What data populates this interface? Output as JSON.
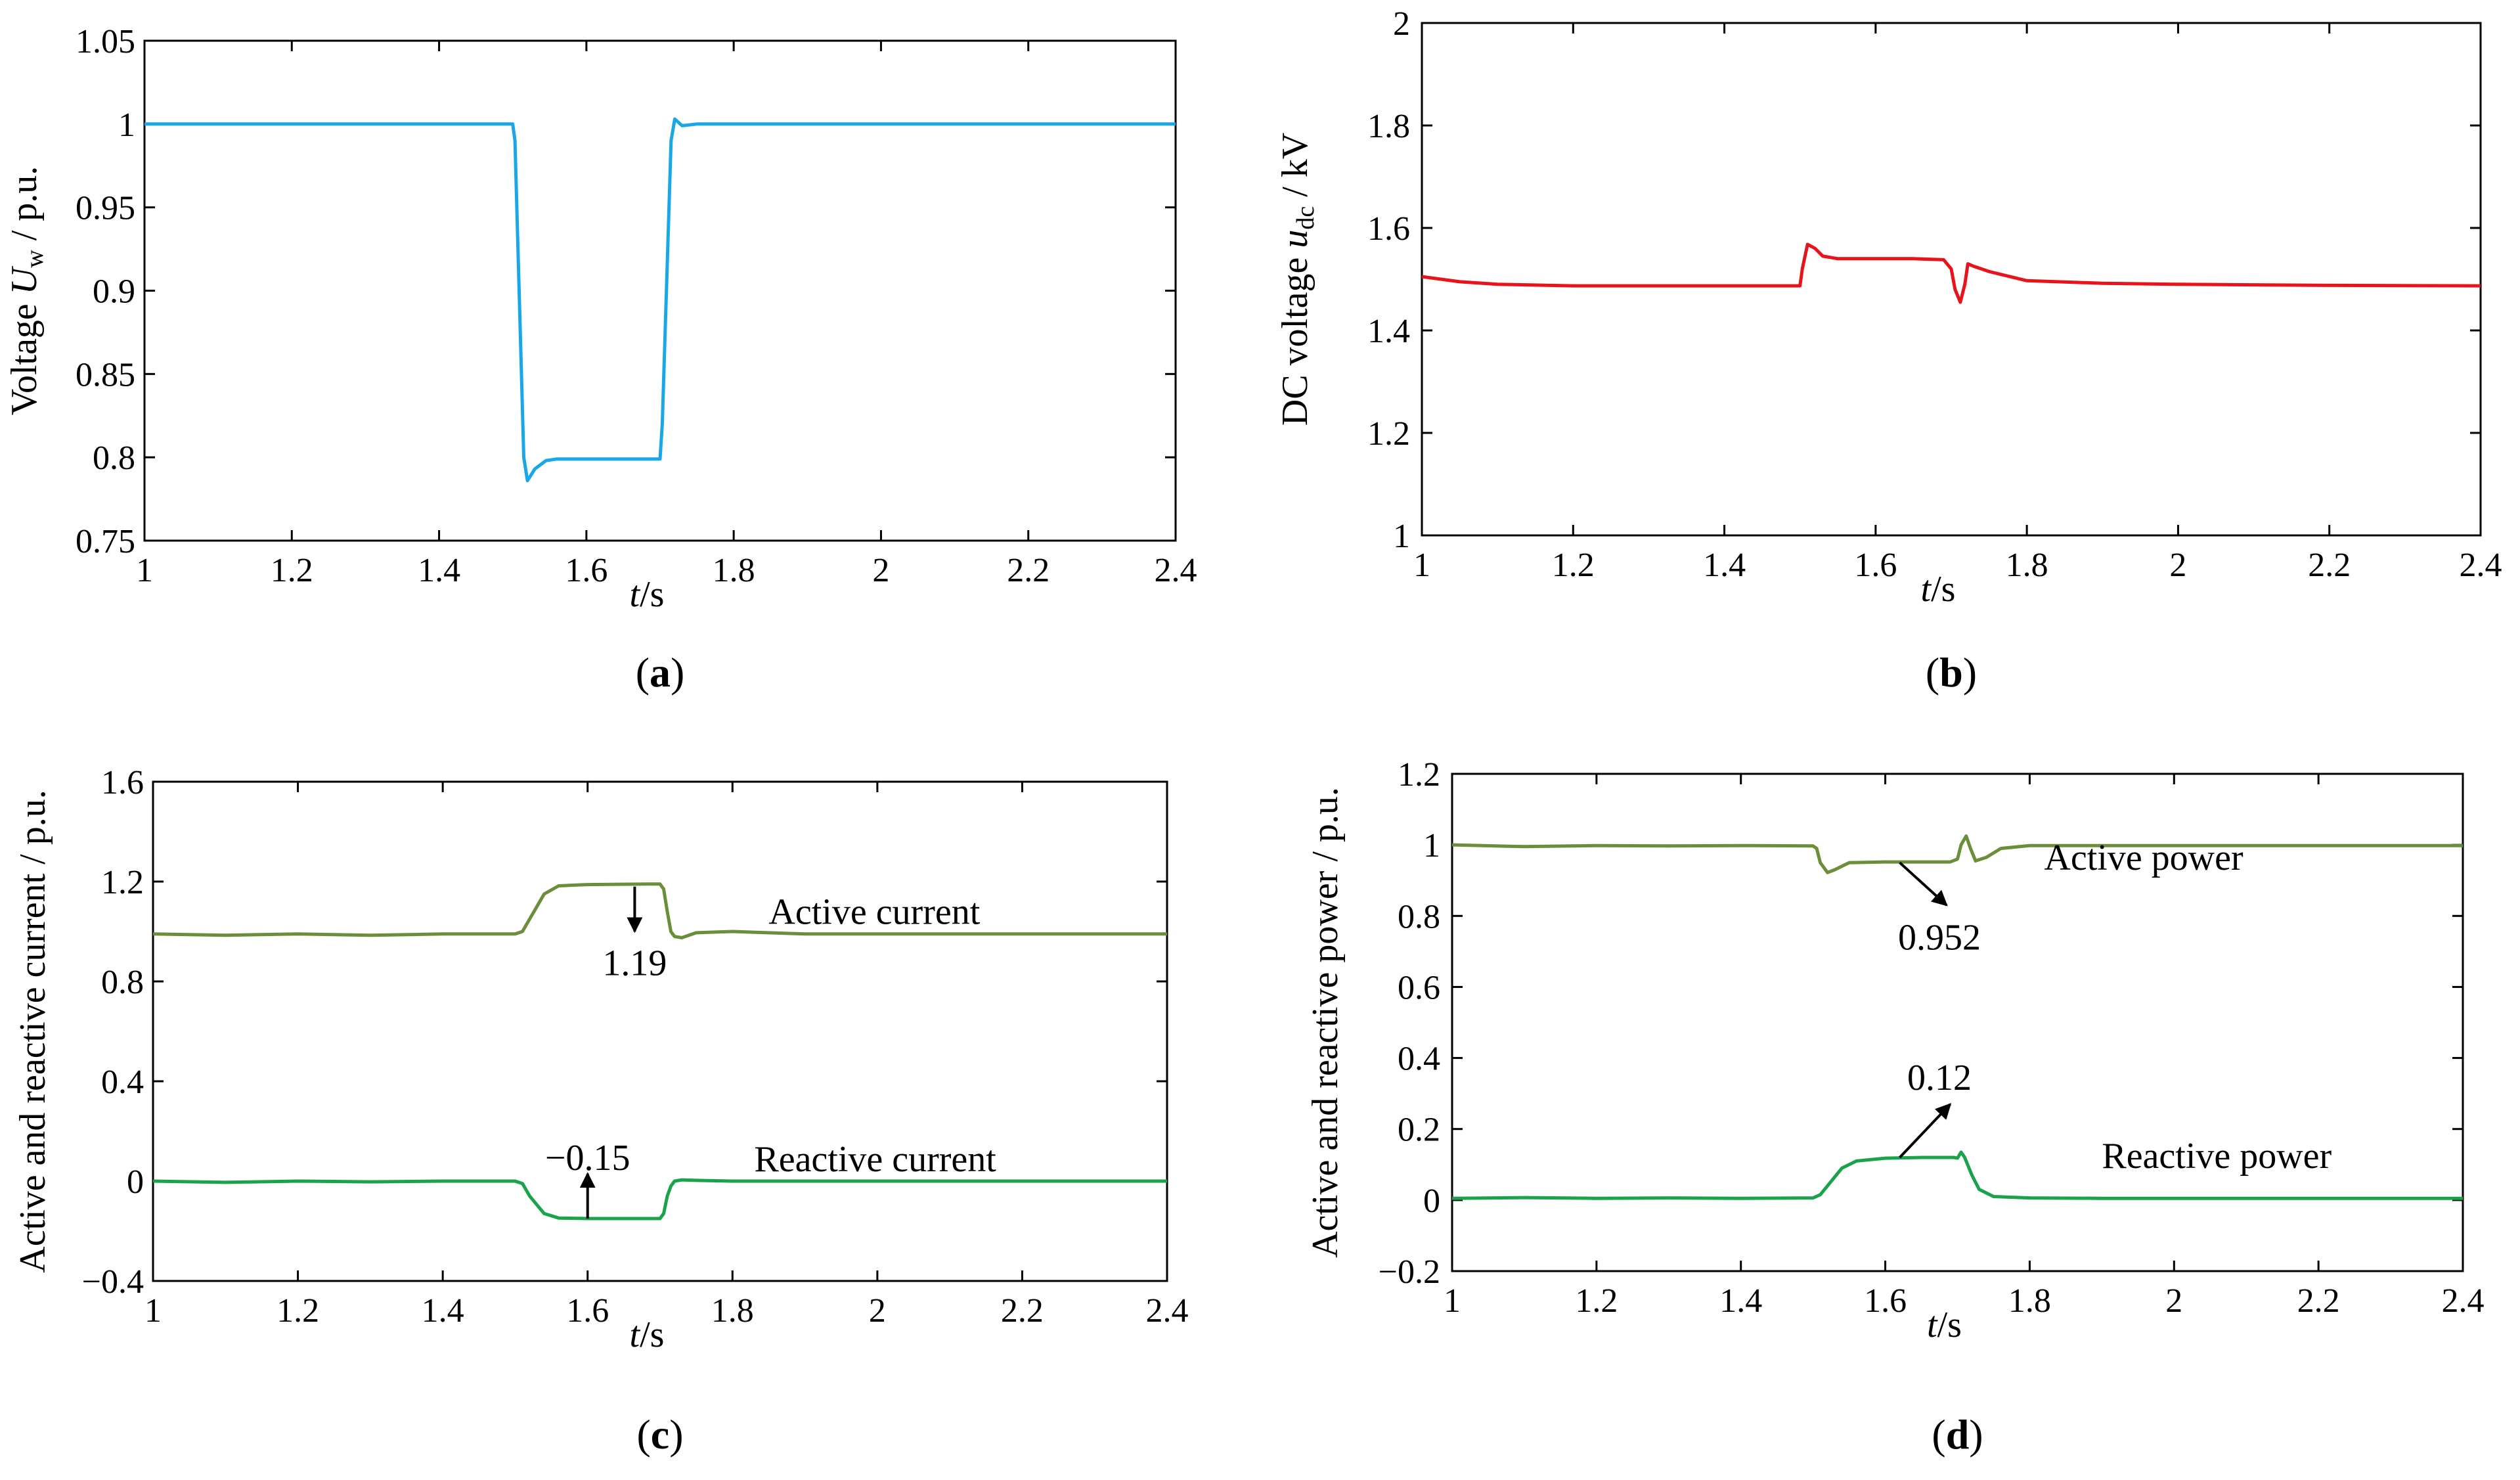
{
  "chart_data": [
    {
      "id": "a",
      "type": "line",
      "panel_label": "a",
      "xlabel": "t/s",
      "ylabel": "Voltage Uw / p.u.",
      "ylabel_parts": {
        "pre": "Voltage ",
        "sym": "U",
        "sub": "w",
        "post": " / p.u."
      },
      "xlim": [
        1,
        2.4
      ],
      "ylim": [
        0.75,
        1.05
      ],
      "xticks": [
        1,
        1.2,
        1.4,
        1.6,
        1.8,
        2,
        2.2,
        2.4
      ],
      "xtick_labels": [
        "1",
        "1.2",
        "1.4",
        "1.6",
        "1.8",
        "2",
        "2.2",
        "2.4"
      ],
      "yticks": [
        0.75,
        0.8,
        0.85,
        0.9,
        0.95,
        1,
        1.05
      ],
      "ytick_labels": [
        "0.75",
        "0.8",
        "0.85",
        "0.9",
        "0.95",
        "1",
        "1.05"
      ],
      "series": [
        {
          "name": "Uw",
          "color": "#1aa7e8",
          "x": [
            1,
            1.5,
            1.503,
            1.515,
            1.52,
            1.53,
            1.545,
            1.56,
            1.6,
            1.7,
            1.703,
            1.715,
            1.72,
            1.73,
            1.75,
            2.4
          ],
          "y": [
            1,
            1,
            0.99,
            0.8,
            0.786,
            0.793,
            0.798,
            0.799,
            0.799,
            0.799,
            0.82,
            0.99,
            1.003,
            0.999,
            1,
            1
          ]
        }
      ],
      "annotations": []
    },
    {
      "id": "b",
      "type": "line",
      "panel_label": "b",
      "xlabel": "t/s",
      "ylabel": "DC voltage udc / kV",
      "ylabel_parts": {
        "pre": "DC voltage ",
        "sym": "u",
        "sub": "dc",
        "post": " / kV"
      },
      "xlim": [
        1,
        2.4
      ],
      "ylim": [
        1,
        2
      ],
      "xticks": [
        1,
        1.2,
        1.4,
        1.6,
        1.8,
        2,
        2.2,
        2.4
      ],
      "xtick_labels": [
        "1",
        "1.2",
        "1.4",
        "1.6",
        "1.8",
        "2",
        "2.2",
        "2.4"
      ],
      "yticks": [
        1,
        1.2,
        1.4,
        1.6,
        1.8,
        2
      ],
      "ytick_labels": [
        "1",
        "1.2",
        "1.4",
        "1.6",
        "1.8",
        "2"
      ],
      "series": [
        {
          "name": "udc",
          "color": "#e8141c",
          "x": [
            1,
            1.05,
            1.1,
            1.2,
            1.3,
            1.4,
            1.5,
            1.503,
            1.51,
            1.52,
            1.53,
            1.55,
            1.6,
            1.65,
            1.69,
            1.7,
            1.705,
            1.712,
            1.718,
            1.722,
            1.73,
            1.75,
            1.8,
            1.9,
            2,
            2.2,
            2.4
          ],
          "y": [
            1.505,
            1.495,
            1.49,
            1.487,
            1.487,
            1.487,
            1.487,
            1.52,
            1.568,
            1.56,
            1.545,
            1.54,
            1.54,
            1.54,
            1.538,
            1.52,
            1.48,
            1.455,
            1.49,
            1.53,
            1.525,
            1.515,
            1.497,
            1.492,
            1.49,
            1.488,
            1.487
          ]
        }
      ],
      "annotations": []
    },
    {
      "id": "c",
      "type": "line",
      "panel_label": "c",
      "xlabel": "t/s",
      "ylabel": "Active and reactive current / p.u.",
      "xlim": [
        1,
        2.4
      ],
      "ylim": [
        -0.4,
        1.6
      ],
      "xticks": [
        1,
        1.2,
        1.4,
        1.6,
        1.8,
        2,
        2.2,
        2.4
      ],
      "xtick_labels": [
        "1",
        "1.2",
        "1.4",
        "1.6",
        "1.8",
        "2",
        "2.2",
        "2.4"
      ],
      "yticks": [
        -0.4,
        0,
        0.4,
        0.8,
        1.2,
        1.6
      ],
      "ytick_labels": [
        "−0.4",
        "0",
        "0.4",
        "0.8",
        "1.2",
        "1.6"
      ],
      "series": [
        {
          "name": "Active current",
          "color": "#6b8e3a",
          "x": [
            1,
            1.1,
            1.2,
            1.3,
            1.4,
            1.5,
            1.51,
            1.52,
            1.54,
            1.56,
            1.6,
            1.68,
            1.7,
            1.705,
            1.71,
            1.715,
            1.72,
            1.73,
            1.75,
            1.8,
            1.9,
            2,
            2.2,
            2.4
          ],
          "y": [
            0.99,
            0.985,
            0.99,
            0.985,
            0.99,
            0.99,
            1.0,
            1.05,
            1.15,
            1.183,
            1.188,
            1.19,
            1.19,
            1.17,
            1.08,
            1.0,
            0.98,
            0.975,
            0.995,
            1.0,
            0.99,
            0.99,
            0.99,
            0.99
          ]
        },
        {
          "name": "Reactive current",
          "color": "#1aa34a",
          "x": [
            1,
            1.1,
            1.2,
            1.3,
            1.4,
            1.5,
            1.51,
            1.52,
            1.54,
            1.56,
            1.6,
            1.68,
            1.7,
            1.705,
            1.71,
            1.715,
            1.72,
            1.73,
            1.75,
            1.8,
            1.9,
            2,
            2.2,
            2.4
          ],
          "y": [
            0.0,
            -0.005,
            0.0,
            -0.003,
            0.0,
            0.0,
            -0.01,
            -0.06,
            -0.13,
            -0.148,
            -0.15,
            -0.15,
            -0.15,
            -0.13,
            -0.06,
            -0.02,
            0.0,
            0.005,
            0.003,
            0.0,
            0.0,
            0.0,
            0.0,
            0.0
          ]
        }
      ],
      "annotations": [
        {
          "text": "Active current",
          "x": 1.85,
          "y": 1.03,
          "anchor": "start",
          "arrow": false
        },
        {
          "text": "Reactive current",
          "x": 1.83,
          "y": 0.04,
          "anchor": "start",
          "arrow": false
        },
        {
          "text": "1.19",
          "x": 1.665,
          "y": 0.825,
          "anchor": "middle",
          "arrow": true,
          "arrow_from": [
            1.665,
            1.18
          ],
          "arrow_to": [
            1.665,
            1.0
          ]
        },
        {
          "text": "−0.15",
          "x": 1.6,
          "y": 0.045,
          "anchor": "middle",
          "arrow": true,
          "arrow_from": [
            1.6,
            -0.15
          ],
          "arrow_to": [
            1.6,
            0.03
          ]
        }
      ]
    },
    {
      "id": "d",
      "type": "line",
      "panel_label": "d",
      "xlabel": "t/s",
      "ylabel": "Active and reactive power / p.u.",
      "xlim": [
        1,
        2.4
      ],
      "ylim": [
        -0.2,
        1.2
      ],
      "xticks": [
        1,
        1.2,
        1.4,
        1.6,
        1.8,
        2,
        2.2,
        2.4
      ],
      "xtick_labels": [
        "1",
        "1.2",
        "1.4",
        "1.6",
        "1.8",
        "2",
        "2.2",
        "2.4"
      ],
      "yticks": [
        -0.2,
        0,
        0.2,
        0.4,
        0.6,
        0.8,
        1,
        1.2
      ],
      "ytick_labels": [
        "−0.2",
        "0",
        "0.2",
        "0.4",
        "0.6",
        "0.8",
        "1",
        "1.2"
      ],
      "series": [
        {
          "name": "Active power",
          "color": "#6b8e3a",
          "x": [
            1,
            1.1,
            1.2,
            1.3,
            1.4,
            1.5,
            1.505,
            1.51,
            1.52,
            1.53,
            1.55,
            1.6,
            1.65,
            1.69,
            1.7,
            1.705,
            1.712,
            1.718,
            1.725,
            1.74,
            1.76,
            1.8,
            1.9,
            2,
            2.2,
            2.4
          ],
          "y": [
            1.0,
            0.995,
            0.998,
            0.997,
            0.998,
            0.997,
            0.99,
            0.95,
            0.922,
            0.93,
            0.95,
            0.952,
            0.952,
            0.952,
            0.96,
            1.0,
            1.025,
            0.99,
            0.955,
            0.965,
            0.99,
            0.998,
            0.998,
            0.998,
            0.998,
            0.998
          ]
        },
        {
          "name": "Reactive power",
          "color": "#1aa34a",
          "x": [
            1,
            1.1,
            1.2,
            1.3,
            1.4,
            1.5,
            1.51,
            1.52,
            1.54,
            1.56,
            1.6,
            1.65,
            1.695,
            1.7,
            1.705,
            1.71,
            1.72,
            1.73,
            1.75,
            1.8,
            1.9,
            2,
            2.2,
            2.4
          ],
          "y": [
            0.005,
            0.007,
            0.005,
            0.006,
            0.005,
            0.006,
            0.015,
            0.04,
            0.09,
            0.11,
            0.118,
            0.12,
            0.12,
            0.118,
            0.135,
            0.12,
            0.07,
            0.03,
            0.01,
            0.006,
            0.005,
            0.005,
            0.005,
            0.005
          ]
        }
      ],
      "annotations": [
        {
          "text": "Active power",
          "x": 1.82,
          "y": 0.93,
          "anchor": "start",
          "arrow": false
        },
        {
          "text": "Reactive power",
          "x": 1.9,
          "y": 0.09,
          "anchor": "start",
          "arrow": false
        },
        {
          "text": "0.952",
          "x": 1.675,
          "y": 0.705,
          "anchor": "middle",
          "arrow": true,
          "arrow_from": [
            1.62,
            0.95
          ],
          "arrow_to": [
            1.685,
            0.83
          ]
        },
        {
          "text": "0.12",
          "x": 1.675,
          "y": 0.31,
          "anchor": "middle",
          "arrow": true,
          "arrow_from": [
            1.62,
            0.12
          ],
          "arrow_to": [
            1.69,
            0.27
          ]
        }
      ]
    }
  ]
}
